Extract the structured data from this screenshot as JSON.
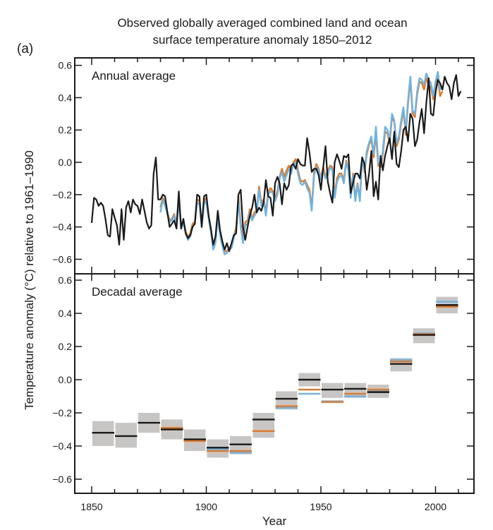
{
  "chart_data": {
    "type": "line",
    "panel_tag": "(a)",
    "title_line1": "Observed globally averaged combined land and ocean",
    "title_line2": "surface temperature anomaly 1850–2012",
    "xlabel": "Year",
    "ylabel": "Temperature anomaly (°C) relative to 1961–1990",
    "xlim": [
      1843,
      2017
    ],
    "x_ticks": [
      1850,
      1900,
      1950,
      2000
    ],
    "x_minor_tick_step": 10,
    "colors": {
      "black": "#1a1a1a",
      "orange": "#E87722",
      "blue": "#6CB4E4",
      "uncertainty": "#C8C6C5"
    },
    "panels": [
      {
        "id": "annual",
        "label": "Annual average",
        "type": "line",
        "ylim": [
          -0.7,
          0.64
        ],
        "y_ticks": [
          "0.6",
          "0.4",
          "0.2",
          "0.0",
          "−0.2",
          "−0.4",
          "−0.6"
        ],
        "y_tick_values": [
          0.6,
          0.4,
          0.2,
          0.0,
          -0.2,
          -0.4,
          -0.6
        ],
        "series": [
          {
            "name": "orange-dataset",
            "color_key": "orange",
            "start_year": 1880,
            "values": [
              -0.28,
              -0.22,
              -0.25,
              -0.31,
              -0.36,
              -0.35,
              -0.32,
              -0.38,
              -0.22,
              -0.4,
              -0.36,
              -0.43,
              -0.46,
              -0.44,
              -0.38,
              -0.37,
              -0.23,
              -0.24,
              -0.39,
              -0.24,
              -0.22,
              -0.34,
              -0.41,
              -0.52,
              -0.48,
              -0.32,
              -0.43,
              -0.5,
              -0.55,
              -0.55,
              -0.53,
              -0.51,
              -0.46,
              -0.4,
              -0.21,
              -0.38,
              -0.46,
              -0.37,
              -0.36,
              -0.29,
              -0.35,
              -0.31,
              -0.3,
              -0.15,
              -0.25,
              -0.23,
              -0.31,
              -0.18,
              -0.16,
              -0.18,
              -0.22,
              -0.18,
              -0.09,
              -0.04,
              -0.09,
              -0.05,
              -0.02,
              -0.05,
              0.0,
              0.02,
              -0.05,
              -0.11,
              -0.12,
              -0.11,
              -0.14,
              -0.17,
              -0.28,
              -0.06,
              -0.01,
              -0.04,
              -0.1,
              -0.03,
              -0.09,
              -0.05,
              -0.02,
              -0.03,
              -0.2,
              -0.1,
              -0.07,
              -0.07,
              -0.11,
              0.01,
              -0.04,
              -0.2,
              -0.07,
              -0.22,
              -0.13,
              -0.23,
              0.03,
              -0.06,
              0.05,
              0.11,
              0.14,
              0.03,
              0.18,
              -0.02,
              -0.03,
              0.05,
              0.19,
              0.18,
              0.12,
              0.28,
              0.25,
              0.1,
              0.14,
              0.24,
              0.32,
              0.17,
              0.36,
              0.51,
              0.3,
              0.28,
              0.42,
              0.5,
              0.49,
              0.45,
              0.52,
              0.48,
              0.46,
              0.39,
              0.48,
              0.52,
              0.41,
              0.44
            ]
          },
          {
            "name": "blue-dataset",
            "color_key": "blue",
            "start_year": 1880,
            "values": [
              -0.31,
              -0.23,
              -0.27,
              -0.32,
              -0.37,
              -0.36,
              -0.33,
              -0.39,
              -0.24,
              -0.41,
              -0.37,
              -0.44,
              -0.48,
              -0.46,
              -0.4,
              -0.38,
              -0.25,
              -0.26,
              -0.4,
              -0.26,
              -0.24,
              -0.35,
              -0.43,
              -0.54,
              -0.5,
              -0.34,
              -0.45,
              -0.52,
              -0.57,
              -0.56,
              -0.54,
              -0.53,
              -0.47,
              -0.42,
              -0.23,
              -0.4,
              -0.5,
              -0.39,
              -0.38,
              -0.31,
              -0.36,
              -0.33,
              -0.31,
              -0.17,
              -0.27,
              -0.24,
              -0.33,
              -0.2,
              -0.18,
              -0.19,
              -0.24,
              -0.2,
              -0.1,
              -0.06,
              -0.12,
              -0.08,
              -0.04,
              -0.07,
              -0.01,
              0.0,
              -0.07,
              -0.13,
              -0.14,
              -0.12,
              -0.16,
              -0.19,
              -0.3,
              -0.08,
              -0.03,
              -0.05,
              -0.11,
              -0.05,
              -0.1,
              -0.08,
              -0.03,
              -0.05,
              -0.22,
              -0.12,
              -0.09,
              -0.08,
              -0.13,
              0.0,
              -0.05,
              -0.22,
              -0.08,
              -0.24,
              -0.14,
              -0.24,
              0.03,
              -0.05,
              0.07,
              0.12,
              0.16,
              0.05,
              0.22,
              0.0,
              -0.02,
              0.07,
              0.22,
              0.2,
              0.14,
              0.3,
              0.26,
              0.12,
              0.16,
              0.26,
              0.34,
              0.19,
              0.38,
              0.53,
              0.32,
              0.3,
              0.44,
              0.52,
              0.51,
              0.48,
              0.55,
              0.51,
              0.49,
              0.41,
              0.5,
              0.56,
              0.45,
              0.47
            ]
          },
          {
            "name": "black-dataset",
            "color_key": "black",
            "start_year": 1850,
            "values": [
              -0.375,
              -0.22,
              -0.23,
              -0.27,
              -0.25,
              -0.27,
              -0.35,
              -0.45,
              -0.46,
              -0.29,
              -0.34,
              -0.39,
              -0.51,
              -0.29,
              -0.48,
              -0.28,
              -0.24,
              -0.31,
              -0.23,
              -0.26,
              -0.27,
              -0.32,
              -0.23,
              -0.3,
              -0.37,
              -0.41,
              -0.39,
              -0.07,
              0.03,
              -0.23,
              -0.23,
              -0.2,
              -0.21,
              -0.31,
              -0.4,
              -0.38,
              -0.36,
              -0.41,
              -0.18,
              -0.41,
              -0.35,
              -0.44,
              -0.47,
              -0.45,
              -0.4,
              -0.38,
              -0.2,
              -0.21,
              -0.4,
              -0.21,
              -0.2,
              -0.33,
              -0.41,
              -0.51,
              -0.46,
              -0.3,
              -0.42,
              -0.49,
              -0.54,
              -0.5,
              -0.55,
              -0.5,
              -0.45,
              -0.44,
              -0.2,
              -0.17,
              -0.4,
              -0.48,
              -0.4,
              -0.33,
              -0.28,
              -0.2,
              -0.31,
              -0.28,
              -0.3,
              -0.25,
              -0.11,
              -0.21,
              -0.22,
              -0.33,
              -0.13,
              -0.09,
              -0.13,
              -0.26,
              -0.13,
              -0.17,
              -0.14,
              -0.02,
              -0.01,
              -0.04,
              0.02,
              -0.01,
              -0.02,
              -0.02,
              0.15,
              0.06,
              -0.06,
              -0.04,
              -0.04,
              -0.08,
              -0.17,
              -0.03,
              0.1,
              -0.12,
              -0.19,
              -0.25,
              0.0,
              0.05,
              0.01,
              -0.04,
              0.04,
              0.03,
              0.05,
              -0.19,
              -0.13,
              -0.07,
              -0.07,
              -0.1,
              0.03,
              -0.01,
              -0.17,
              -0.07,
              0.07,
              -0.21,
              -0.12,
              -0.23,
              0.04,
              -0.05,
              0.04,
              0.1,
              0.15,
              0.02,
              0.19,
              -0.01,
              -0.03,
              0.07,
              0.2,
              0.22,
              0.13,
              0.3,
              0.27,
              0.1,
              0.14,
              0.25,
              0.33,
              0.18,
              0.37,
              0.52,
              0.3,
              0.29,
              0.43,
              0.51,
              0.49,
              0.45,
              0.53,
              0.49,
              0.47,
              0.39,
              0.49,
              0.54,
              0.41,
              0.44
            ]
          }
        ]
      },
      {
        "id": "decadal",
        "label": "Decadal average",
        "type": "bar-range",
        "ylim": [
          -0.7,
          0.64
        ],
        "y_ticks": [
          "0.6",
          "0.4",
          "0.2",
          "0.0",
          "−0.2",
          "−0.4",
          "−0.6"
        ],
        "y_tick_values": [
          0.6,
          0.4,
          0.2,
          0.0,
          -0.2,
          -0.4,
          -0.6
        ],
        "decades": [
          1850,
          1860,
          1870,
          1880,
          1890,
          1900,
          1910,
          1920,
          1930,
          1940,
          1950,
          1960,
          1970,
          1980,
          1990,
          2000
        ],
        "uncertainty_low": [
          -0.4,
          -0.41,
          -0.32,
          -0.36,
          -0.43,
          -0.47,
          -0.45,
          -0.35,
          -0.18,
          -0.04,
          -0.11,
          -0.11,
          -0.11,
          0.05,
          0.22,
          0.4
        ],
        "uncertainty_high": [
          -0.25,
          -0.26,
          -0.2,
          -0.24,
          -0.3,
          -0.36,
          -0.34,
          -0.2,
          -0.07,
          0.04,
          -0.02,
          -0.02,
          -0.03,
          0.13,
          0.31,
          0.5
        ],
        "series": [
          {
            "name": "black-dataset",
            "color_key": "black",
            "values": [
              -0.32,
              -0.34,
              -0.26,
              -0.3,
              -0.36,
              -0.41,
              -0.39,
              -0.24,
              -0.115,
              0.0,
              -0.06,
              -0.055,
              -0.075,
              0.095,
              0.27,
              0.45
            ]
          },
          {
            "name": "orange-dataset",
            "color_key": "orange",
            "values": [
              null,
              null,
              null,
              -0.29,
              -0.37,
              -0.43,
              -0.43,
              -0.31,
              -0.16,
              -0.06,
              -0.135,
              -0.085,
              -0.06,
              0.11,
              0.275,
              0.44
            ]
          },
          {
            "name": "blue-dataset",
            "color_key": "blue",
            "values": [
              null,
              null,
              null,
              null,
              -0.36,
              -0.42,
              -0.44,
              null,
              -0.17,
              -0.085,
              -0.13,
              -0.1,
              -0.065,
              0.12,
              0.28,
              0.47
            ]
          }
        ]
      }
    ]
  }
}
